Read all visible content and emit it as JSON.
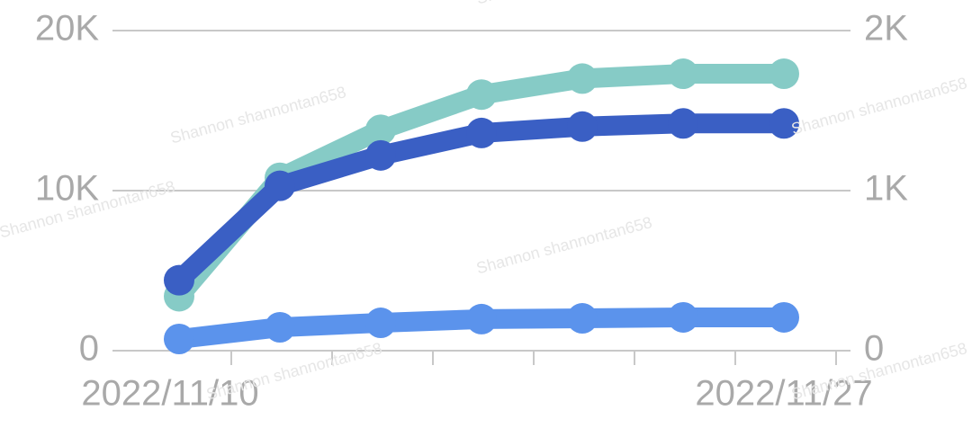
{
  "chart_data": {
    "type": "line",
    "watermark": "Shannon shannontan658",
    "categories": [
      "2022/11/10",
      null,
      null,
      null,
      null,
      null,
      "2022/11/27"
    ],
    "series": [
      {
        "color": "#86cbc6",
        "values": [
          3400,
          10800,
          13800,
          16000,
          17000,
          17300,
          17300
        ]
      },
      {
        "color": "#3a5fc4",
        "values": [
          4400,
          10300,
          12200,
          13600,
          14000,
          14200,
          14200
        ]
      },
      {
        "color": "#5b93ec",
        "axis": "y2",
        "values": [
          73,
          146,
          174,
          197,
          202,
          208,
          208
        ]
      }
    ],
    "ylim": [
      0,
      20000
    ],
    "yticks": [
      0,
      {
        "value": 10000,
        "label": "10K"
      },
      {
        "value": 20000,
        "label": "20K"
      }
    ],
    "y2lim": [
      0,
      2000
    ],
    "y2ticks": [
      0,
      {
        "value": 1000,
        "label": "1K"
      },
      {
        "value": 2000,
        "label": "2K"
      }
    ],
    "grid": true
  }
}
